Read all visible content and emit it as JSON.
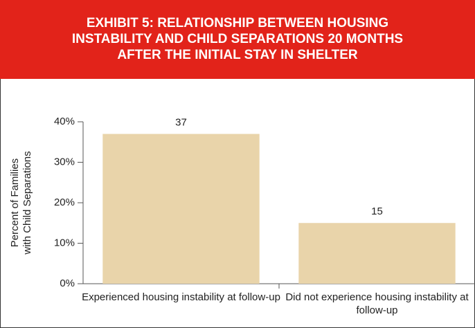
{
  "chart_data": {
    "type": "bar",
    "title": [
      "EXHIBIT 5: RELATIONSHIP BETWEEN HOUSING",
      "INSTABILITY AND CHILD SEPARATIONS 20 MONTHS",
      "AFTER THE INITIAL STAY IN SHELTER"
    ],
    "ylabel": [
      "Percent of Families",
      "with Child Separations"
    ],
    "categories": [
      "Experienced housing instability at follow-up",
      "Did not experience housing instability at follow-up"
    ],
    "values": [
      37,
      15
    ],
    "color": "#e9d4aa",
    "ylim": [
      0,
      40
    ],
    "yticks": [
      {
        "value": 0,
        "label": "0%"
      },
      {
        "value": 10,
        "label": "10%"
      },
      {
        "value": 20,
        "label": "20%"
      },
      {
        "value": 30,
        "label": "30%"
      },
      {
        "value": 40,
        "label": "40%"
      }
    ]
  }
}
